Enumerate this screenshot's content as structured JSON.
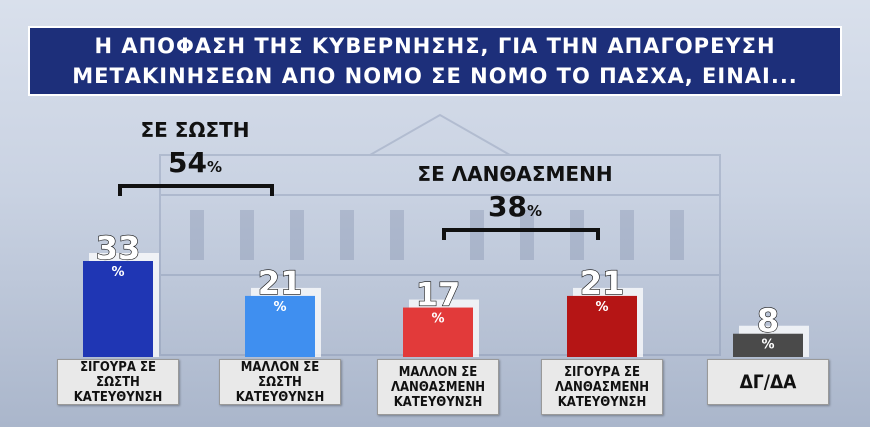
{
  "title": {
    "line1": "Η ΑΠΟΦΑΣΗ ΤΗΣ ΚΥΒΕΡΝΗΣΗΣ, ΓΙΑ ΤΗΝ ΑΠΑΓΟΡΕΥΣΗ",
    "line2": "ΜΕΤΑΚΙΝΗΣΕΩΝ ΑΠΟ ΝΟΜΟ ΣΕ ΝΟΜΟ ΤΟ ΠΑΣΧΑ, ΕΙΝΑΙ..."
  },
  "groups": {
    "correct": {
      "label": "ΣΕ ΣΩΣΤΗ",
      "value": "54",
      "unit": "%"
    },
    "wrong": {
      "label": "ΣΕ ΛΑΝΘΑΣΜΕΝΗ",
      "value": "38",
      "unit": "%"
    }
  },
  "colors": {
    "title_bg": "#1d2f7a",
    "bar1": "#1f36b4",
    "bar2": "#3f8ff0",
    "bar3": "#e23a3a",
    "bar4": "#b51515",
    "bar5": "#4a4a4a"
  },
  "chart_data": {
    "type": "bar",
    "categories": [
      "ΣΙΓΟΥΡΑ ΣΕ ΣΩΣΤΗ ΚΑΤΕΥΘΥΝΣΗ",
      "ΜΑΛΛΟΝ ΣΕ ΣΩΣΤΗ ΚΑΤΕΥΘΥΝΣΗ",
      "ΜΑΛΛΟΝ ΣΕ ΛΑΝΘΑΣΜΕΝΗ ΚΑΤΕΥΘΥΝΣΗ",
      "ΣΙΓΟΥΡΑ ΣΕ ΛΑΝΘΑΣΜΕΝΗ ΚΑΤΕΥΘΥΝΣΗ",
      "ΔΓ/ΔΑ"
    ],
    "category_lines": [
      [
        "ΣΙΓΟΥΡΑ ΣΕ ΣΩΣΤΗ",
        "ΚΑΤΕΥΘΥΝΣΗ"
      ],
      [
        "ΜΑΛΛΟΝ ΣΕ ΣΩΣΤΗ",
        "ΚΑΤΕΥΘΥΝΣΗ"
      ],
      [
        "ΜΑΛΛΟΝ ΣΕ",
        "ΛΑΝΘΑΣΜΕΝΗ",
        "ΚΑΤΕΥΘΥΝΣΗ"
      ],
      [
        "ΣΙΓΟΥΡΑ ΣΕ",
        "ΛΑΝΘΑΣΜΕΝΗ",
        "ΚΑΤΕΥΘΥΝΣΗ"
      ],
      [
        "ΔΓ/ΔΑ"
      ]
    ],
    "values": [
      33,
      21,
      17,
      21,
      8
    ],
    "value_unit": "%",
    "title": "",
    "xlabel": "",
    "ylabel": "",
    "grid": false,
    "legend": "none"
  }
}
